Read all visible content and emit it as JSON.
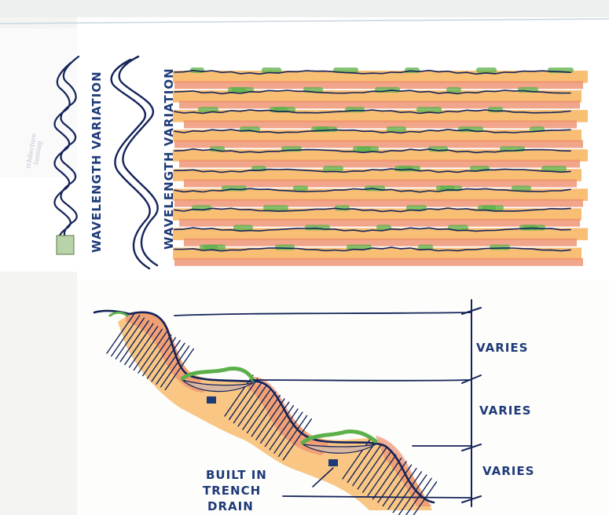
{
  "plan_view": {
    "label_left": "WAVELENGTH VARIATION",
    "label_right": "WAVELENGTH VARIATION",
    "band_count": 9
  },
  "section_view": {
    "dimension_labels": [
      "VARIES",
      "VARIES",
      "VARIES"
    ],
    "callout_lines": [
      "BUILT IN",
      "TRENCH",
      "DRAIN"
    ]
  },
  "colors": {
    "ink": "#14245a",
    "orange": "#f7b35c",
    "salmon": "#ee8e6e",
    "green": "#5cb04a",
    "paper": "#ffffff",
    "background": "#f4f4f2"
  }
}
